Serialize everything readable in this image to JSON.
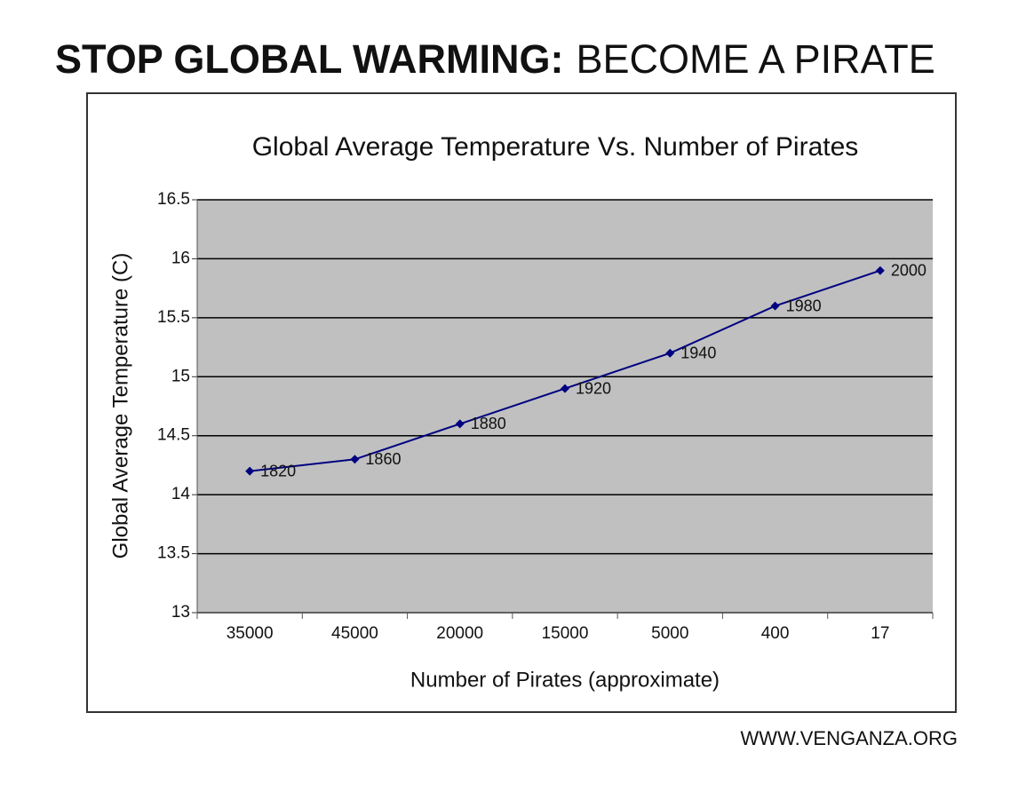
{
  "headline": {
    "bold": "STOP GLOBAL WARMING:",
    "normal": "BECOME A PIRATE"
  },
  "footer": "WWW.VENGANZA.ORG",
  "chart_data": {
    "type": "line",
    "title": "Global Average Temperature Vs. Number of Pirates",
    "x_label": "Number of Pirates (approximate)",
    "y_label": "Global Average Temperature (C)",
    "categories": [
      "35000",
      "45000",
      "20000",
      "15000",
      "5000",
      "400",
      "17"
    ],
    "values": [
      14.2,
      14.3,
      14.6,
      14.9,
      15.2,
      15.6,
      15.9
    ],
    "point_labels": [
      "1820",
      "1860",
      "1880",
      "1920",
      "1940",
      "1980",
      "2000"
    ],
    "color": "#000080",
    "ylim": [
      13,
      16.5
    ],
    "yticks": [
      13,
      13.5,
      14,
      14.5,
      15,
      15.5,
      16,
      16.5
    ],
    "grid": true,
    "plot_background": "#c0c0c0"
  }
}
